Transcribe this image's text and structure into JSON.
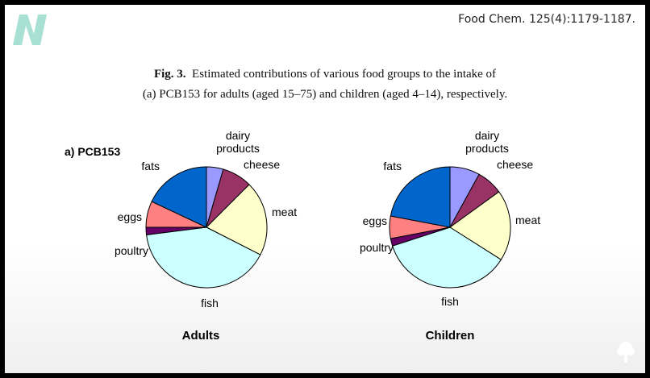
{
  "header": {
    "citation": "Food Chem. 125(4):1179-1187."
  },
  "figure": {
    "caption_label": "Fig. 3.",
    "caption_line1": "Estimated contributions of various food groups to the intake of",
    "caption_line2": "(a) PCB153  for adults (aged 15–75) and children (aged 4–14), respectively.",
    "panel_label": "a) PCB153"
  },
  "colors": {
    "dairy": "#9999ff",
    "cheese": "#993366",
    "meat": "#ffffcc",
    "fish": "#ccffff",
    "poultry": "#660066",
    "eggs": "#ff8080",
    "fats": "#0066cc"
  },
  "chart_data": [
    {
      "type": "pie",
      "title": "Adults",
      "slices": [
        {
          "key": "dairy",
          "label_lines": [
            "dairy",
            "products"
          ],
          "value": 4.5
        },
        {
          "key": "cheese",
          "label_lines": [
            "cheese"
          ],
          "value": 8
        },
        {
          "key": "meat",
          "label_lines": [
            "meat"
          ],
          "value": 20
        },
        {
          "key": "fish",
          "label_lines": [
            "fish"
          ],
          "value": 40.5
        },
        {
          "key": "poultry",
          "label_lines": [
            "poultry"
          ],
          "value": 2
        },
        {
          "key": "eggs",
          "label_lines": [
            "eggs"
          ],
          "value": 7
        },
        {
          "key": "fats",
          "label_lines": [
            "fats"
          ],
          "value": 18
        }
      ]
    },
    {
      "type": "pie",
      "title": "Children",
      "slices": [
        {
          "key": "dairy",
          "label_lines": [
            "dairy",
            "products"
          ],
          "value": 8
        },
        {
          "key": "cheese",
          "label_lines": [
            "cheese"
          ],
          "value": 7
        },
        {
          "key": "meat",
          "label_lines": [
            "meat"
          ],
          "value": 19
        },
        {
          "key": "fish",
          "label_lines": [
            "fish"
          ],
          "value": 36
        },
        {
          "key": "poultry",
          "label_lines": [
            "poultry"
          ],
          "value": 2
        },
        {
          "key": "eggs",
          "label_lines": [
            "eggs"
          ],
          "value": 6
        },
        {
          "key": "fats",
          "label_lines": [
            "fats"
          ],
          "value": 22
        }
      ]
    }
  ]
}
